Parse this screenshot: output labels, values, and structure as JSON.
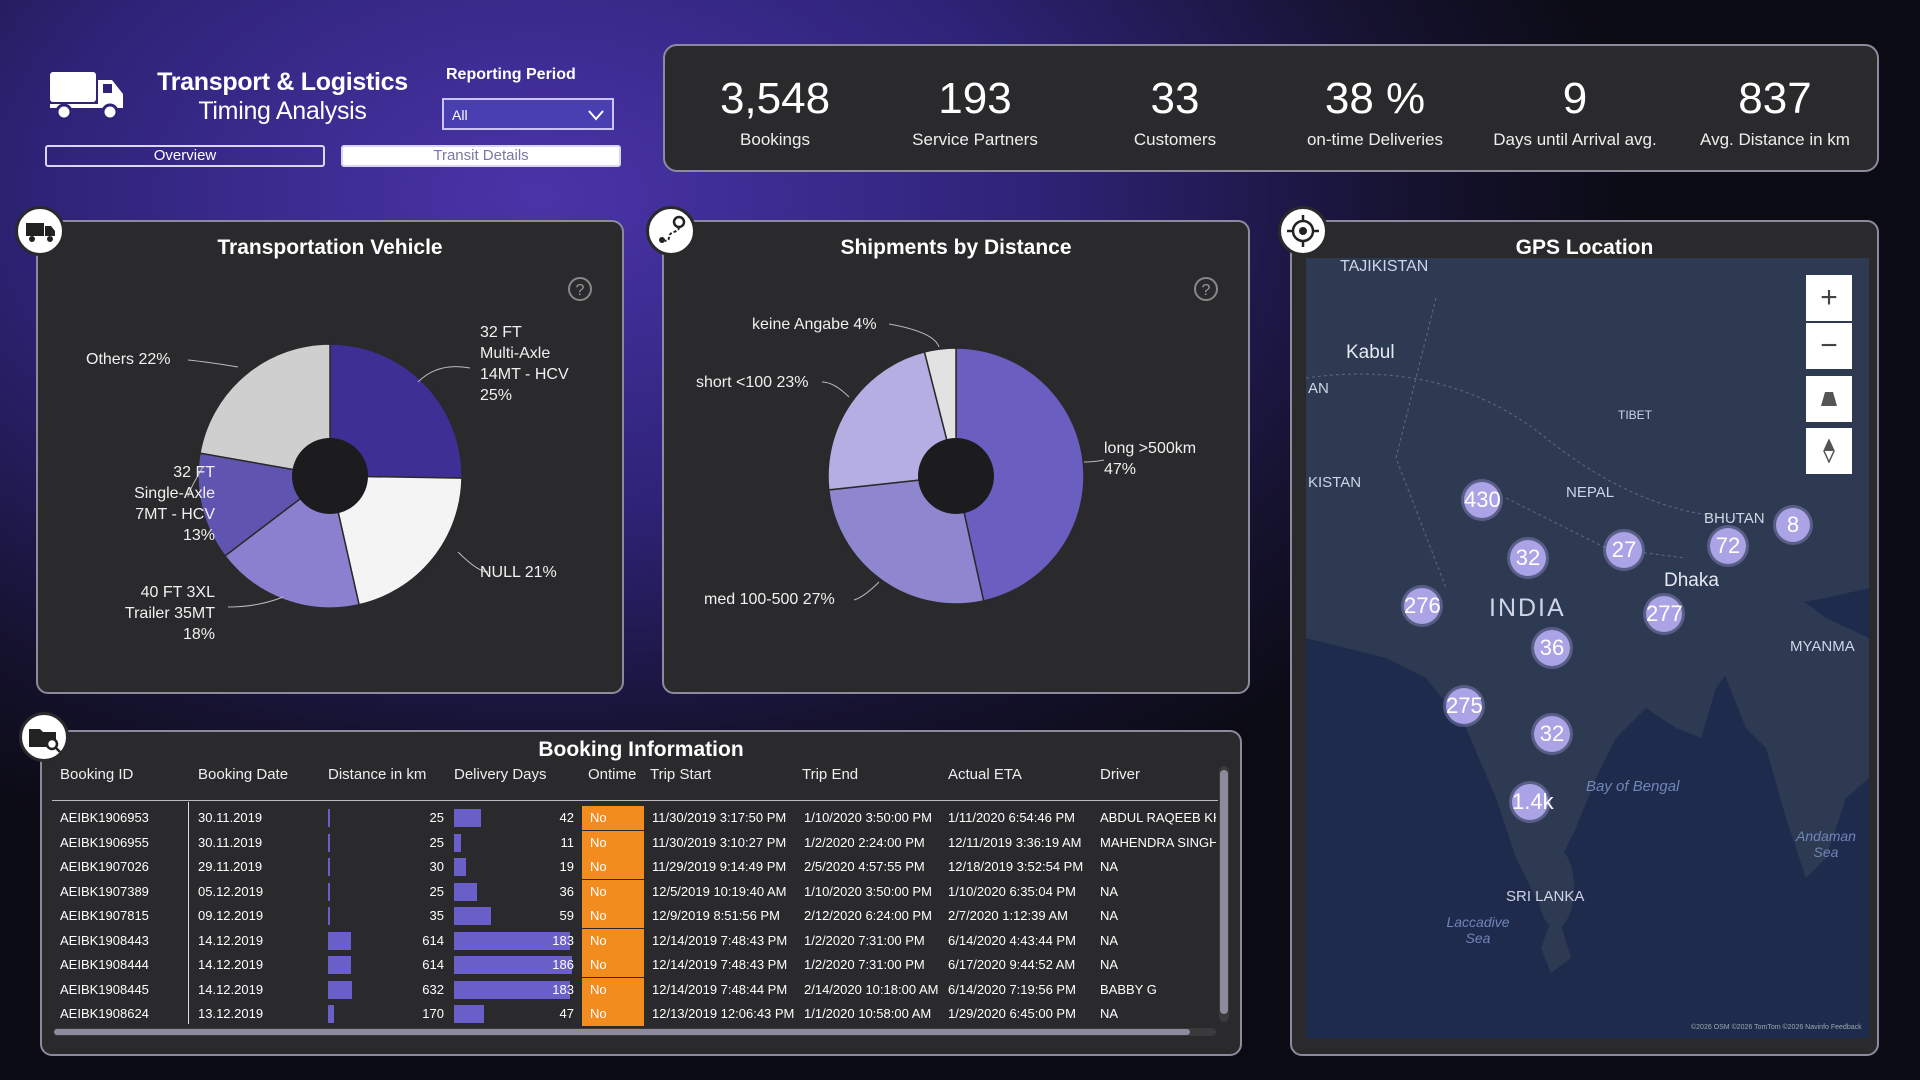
{
  "header": {
    "title": "Transport & Logistics",
    "subtitle": "Timing Analysis",
    "period_label": "Reporting Period",
    "period_value": "All",
    "nav": {
      "overview": "Overview",
      "transit": "Transit Details"
    }
  },
  "kpis": [
    {
      "value": "3,548",
      "label": "Bookings"
    },
    {
      "value": "193",
      "label": "Service Partners"
    },
    {
      "value": "33",
      "label": "Customers"
    },
    {
      "value": "38 %",
      "label": "on-time Deliveries"
    },
    {
      "value": "9",
      "label": "Days until Arrival avg."
    },
    {
      "value": "837",
      "label": "Avg. Distance in km"
    }
  ],
  "panels": {
    "vehicle_title": "Transportation Vehicle",
    "distance_title": "Shipments by Distance",
    "gps_title": "GPS Location",
    "booking_title": "Booking Information"
  },
  "chart_data": [
    {
      "type": "pie",
      "title": "Transportation Vehicle",
      "slices": [
        {
          "label": "32 FT Multi-Axle 14MT - HCV",
          "value": 25,
          "label_text": "32 FT\nMulti-Axle\n14MT - HCV\n25%"
        },
        {
          "label": "NULL",
          "value": 21,
          "label_text": "NULL 21%"
        },
        {
          "label": "40 FT 3XL Trailer 35MT",
          "value": 18,
          "label_text": "40 FT 3XL\nTrailer 35MT\n18%"
        },
        {
          "label": "32 FT Single-Axle 7MT - HCV",
          "value": 13,
          "label_text": "32 FT\nSingle-Axle\n7MT - HCV\n13%"
        },
        {
          "label": "Others",
          "value": 22,
          "label_text": "Others 22%"
        }
      ],
      "colors": [
        "#3d2f94",
        "#f4f4f4",
        "#8a80cf",
        "#5f55b1",
        "#cfcfcf"
      ]
    },
    {
      "type": "pie",
      "title": "Shipments by Distance",
      "slices": [
        {
          "label": "long >500km",
          "value": 47,
          "label_text": "long >500km\n47%"
        },
        {
          "label": "med 100-500",
          "value": 27,
          "label_text": "med 100-500 27%"
        },
        {
          "label": "short <100",
          "value": 23,
          "label_text": "short <100 23%"
        },
        {
          "label": "keine Angabe",
          "value": 4,
          "label_text": "keine Angabe 4%"
        }
      ],
      "colors": [
        "#6a5fc0",
        "#8f86d0",
        "#b4aee2",
        "#e2e2e2"
      ]
    }
  ],
  "map": {
    "places": [
      "TAJIKISTAN",
      "Kabul",
      "AN",
      "KISTAN",
      "TIBET",
      "NEPAL",
      "BHUTAN",
      "Dhaka",
      "INDIA",
      "MYANMA",
      "Bay of Bengal",
      "SRI LANKA",
      "Laccadive Sea",
      "Andaman Sea"
    ],
    "clusters": [
      "430",
      "32",
      "27",
      "72",
      "8",
      "276",
      "277",
      "36",
      "275",
      "32",
      "1.4k"
    ],
    "attribution": "©2026 OSM ©2026 TomTom ©2026 Navinfo Feedback"
  },
  "table": {
    "columns": [
      "Booking ID",
      "Booking Date",
      "Distance in km",
      "Delivery Days",
      "Ontime",
      "Trip Start",
      "Trip End",
      "Actual ETA",
      "Driver"
    ],
    "rows": [
      [
        "AEIBK1906953",
        "30.11.2019",
        "25",
        "42",
        "No",
        "11/30/2019 3:17:50 PM",
        "1/10/2020 3:50:00 PM",
        "1/11/2020 6:54:46 PM",
        "ABDUL RAQEEB KHA"
      ],
      [
        "AEIBK1906955",
        "30.11.2019",
        "25",
        "11",
        "No",
        "11/30/2019 3:10:27 PM",
        "1/2/2020 2:24:00 PM",
        "12/11/2019 3:36:19 AM",
        "MAHENDRA SINGH"
      ],
      [
        "AEIBK1907026",
        "29.11.2019",
        "30",
        "19",
        "No",
        "11/29/2019 9:14:49 PM",
        "2/5/2020 4:57:55 PM",
        "12/18/2019 3:52:54 PM",
        "NA"
      ],
      [
        "AEIBK1907389",
        "05.12.2019",
        "25",
        "36",
        "No",
        "12/5/2019 10:19:40 AM",
        "1/10/2020 3:50:00 PM",
        "1/10/2020 6:35:04 PM",
        "NA"
      ],
      [
        "AEIBK1907815",
        "09.12.2019",
        "35",
        "59",
        "No",
        "12/9/2019 8:51:56 PM",
        "2/12/2020 6:24:00 PM",
        "2/7/2020 1:12:39 AM",
        "NA"
      ],
      [
        "AEIBK1908443",
        "14.12.2019",
        "614",
        "183",
        "No",
        "12/14/2019 7:48:43 PM",
        "1/2/2020 7:31:00 PM",
        "6/14/2020 4:43:44 PM",
        "NA"
      ],
      [
        "AEIBK1908444",
        "14.12.2019",
        "614",
        "186",
        "No",
        "12/14/2019 7:48:43 PM",
        "1/2/2020 7:31:00 PM",
        "6/17/2020 9:44:52 AM",
        "NA"
      ],
      [
        "AEIBK1908445",
        "14.12.2019",
        "632",
        "183",
        "No",
        "12/14/2019 7:48:44 PM",
        "2/14/2020 10:18:00 AM",
        "6/14/2020 7:19:56 PM",
        "BABBY G"
      ],
      [
        "AEIBK1908624",
        "13.12.2019",
        "170",
        "47",
        "No",
        "12/13/2019 12:06:43 PM",
        "1/1/2020 10:58:00 AM",
        "1/29/2020 6:45:00 PM",
        "NA"
      ]
    ]
  },
  "icons": [
    "truck-icon",
    "route-icon",
    "gps-icon",
    "folder-search-icon",
    "help-icon",
    "chevron-down-icon",
    "zoom-in-icon",
    "zoom-out-icon",
    "tilt-icon",
    "compass-icon"
  ]
}
